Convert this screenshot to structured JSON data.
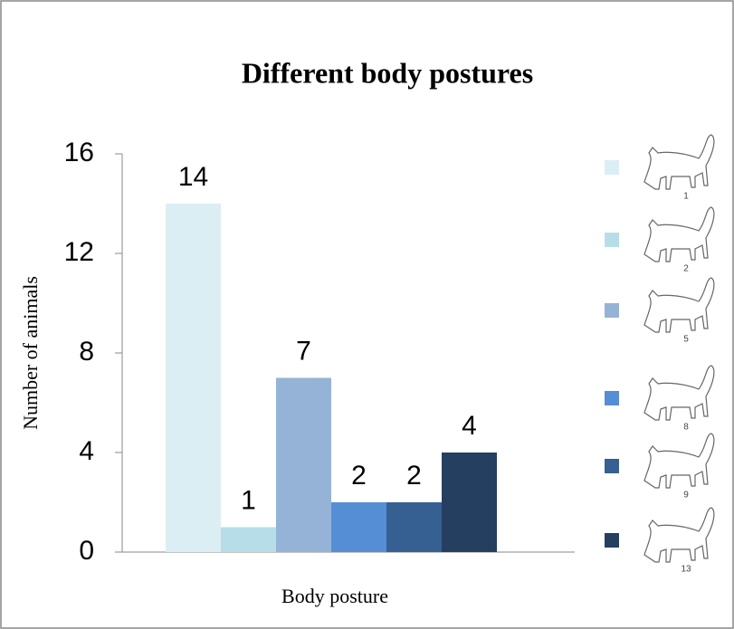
{
  "chart_data": {
    "type": "bar",
    "title": "Different body postures",
    "xlabel": "Body posture",
    "ylabel": "Number of animals",
    "categories": [
      null
    ],
    "series": [
      {
        "name": "1",
        "color": "#dbeef4",
        "values": [
          14
        ]
      },
      {
        "name": "2",
        "color": "#b7dee8",
        "values": [
          1
        ]
      },
      {
        "name": "5",
        "color": "#95b3d7",
        "values": [
          7
        ]
      },
      {
        "name": "8",
        "color": "#558ed5",
        "values": [
          2
        ]
      },
      {
        "name": "9",
        "color": "#376092",
        "values": [
          2
        ]
      },
      {
        "name": "13",
        "color": "#243f60",
        "values": [
          4
        ]
      }
    ],
    "ylim": [
      0,
      16
    ],
    "yticks": [
      0,
      4,
      8,
      12,
      16
    ],
    "grid": false,
    "legend": "right"
  }
}
